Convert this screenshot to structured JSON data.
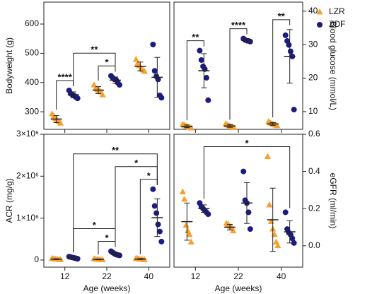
{
  "chart_data": [
    {
      "type": "dotplot",
      "ylabel": "Bodyweight (g)",
      "yaxis": "left",
      "ylim": [
        240,
        675
      ],
      "yticks": [
        300,
        400,
        500,
        600
      ],
      "legend": "right",
      "series": [
        {
          "name": "LZR",
          "color": "#f5a030",
          "marker": "triangle",
          "values": [
            [
              293,
              284,
              276,
              272,
              266,
              261
            ],
            [
              392,
              380,
              375,
              373,
              368,
              358
            ],
            [
              479,
              465,
              457,
              448,
              443,
              438
            ]
          ],
          "means": [
            275,
            374,
            455
          ],
          "sds": [
            12,
            12,
            15
          ]
        },
        {
          "name": "ZDF",
          "color": "#1c1c80",
          "marker": "circle",
          "values": [
            [
              373,
              362,
              358,
              355,
              350,
              346
            ],
            [
              423,
              416,
              411,
              409,
              399,
              392
            ],
            [
              530,
              440,
              421,
              411,
              356,
              348
            ]
          ],
          "means": [
            358,
            408,
            418
          ],
          "sds": [
            10,
            11,
            68
          ]
        }
      ],
      "annotations": [
        {
          "groups": [
            [
              0,
              0
            ],
            [
              0,
              1
            ]
          ],
          "label": "****"
        },
        {
          "groups": [
            [
              1,
              0
            ],
            [
              1,
              1
            ]
          ],
          "label": "*"
        },
        {
          "groups": [
            [
              0,
              1
            ],
            [
              1,
              1
            ]
          ],
          "label": "**"
        }
      ]
    },
    {
      "type": "dotplot",
      "ylabel": "Blood glucose (mmol/L)",
      "yaxis": "right",
      "ylim": [
        4.7,
        42.7
      ],
      "yticks": [
        10,
        20,
        30,
        40
      ],
      "series": [
        {
          "values": [
            [
              6.2,
              5.9,
              5.7,
              5.5,
              5.3,
              5.1
            ],
            [
              6.3,
              6.0,
              5.8,
              5.6,
              5.4,
              5.2
            ],
            [
              7.0,
              6.6,
              6.4,
              6.2,
              6.0,
              5.8
            ]
          ],
          "means": [
            5.6,
            5.7,
            6.3
          ],
          "sds": [
            0.4,
            0.4,
            0.4
          ]
        },
        {
          "values": [
            [
              28.2,
              25.4,
              23.5,
              22.7,
              20.1,
              13.4
            ],
            [
              31.8,
              31.4,
              31.2,
              31.1,
              30.9
            ],
            [
              32.8,
              31.1,
              29.9,
              28.0,
              26.5,
              10.6
            ]
          ],
          "means": [
            22.2,
            31.3,
            26.5
          ],
          "sds": [
            5.1,
            0.4,
            8.0
          ]
        }
      ],
      "annotations": [
        {
          "groups": [
            [
              0,
              0
            ],
            [
              0,
              1
            ]
          ],
          "label": "**"
        },
        {
          "groups": [
            [
              1,
              0
            ],
            [
              1,
              1
            ]
          ],
          "label": "****"
        },
        {
          "groups": [
            [
              2,
              0
            ],
            [
              2,
              1
            ]
          ],
          "label": "**"
        }
      ]
    },
    {
      "type": "dotplot",
      "ylabel": "ACR (mg/g)",
      "xlabel": "Age (weeks)",
      "yaxis": "left",
      "categories": [
        "12",
        "22",
        "40"
      ],
      "ylim": [
        -170000,
        3000000
      ],
      "yticks": [
        0,
        {
          "value": 1000000,
          "label": "1×10⁶"
        },
        {
          "value": 2000000,
          "label": "2×10⁶"
        },
        {
          "value": 3000000,
          "label": "3×10⁶"
        }
      ],
      "series": [
        {
          "values": [
            [
              40000,
              30000,
              20000,
              20000,
              10000,
              10000
            ],
            [
              30000,
              20000,
              15000,
              10000,
              10000,
              5000
            ],
            [
              40000,
              30000,
              20000,
              20000,
              10000,
              10000
            ]
          ],
          "means": [
            20000,
            15000,
            22000
          ],
          "sds": [
            10000,
            9000,
            11000
          ]
        },
        {
          "values": [
            [
              80000,
              70000,
              60000,
              50000,
              40000,
              30000
            ],
            [
              210000,
              180000,
              150000,
              130000,
              120000,
              110000
            ],
            [
              1690000,
              1290000,
              1120000,
              850000,
              680000,
              440000
            ]
          ],
          "means": [
            55000,
            150000,
            1010000
          ],
          "sds": [
            18000,
            38000,
            450000
          ]
        }
      ],
      "annotations": [
        {
          "groups": [
            [
              1,
              0
            ],
            [
              1,
              1
            ]
          ],
          "label": "*"
        },
        {
          "groups": [
            [
              0,
              1
            ],
            [
              1,
              1
            ]
          ],
          "label": "*"
        },
        {
          "groups": [
            [
              2,
              0
            ],
            [
              2,
              1
            ]
          ],
          "label": "*"
        },
        {
          "groups": [
            [
              1,
              1
            ],
            [
              2,
              1
            ]
          ],
          "label": "*"
        },
        {
          "groups": [
            [
              0,
              1
            ],
            [
              2,
              1
            ]
          ],
          "label": "**"
        }
      ]
    },
    {
      "type": "dotplot",
      "ylabel": "eGFR (ml/min)",
      "xlabel": "Age (weeks)",
      "yaxis": "right",
      "categories": [
        "12",
        "22",
        "40"
      ],
      "ylim": [
        -0.115,
        0.6
      ],
      "yticks": [
        {
          "value": 0,
          "label": "0.0"
        },
        0.2,
        0.4,
        0.6
      ],
      "series": [
        {
          "values": [
            [
              0.29,
              0.25,
              0.11,
              0.08,
              0.06,
              0.02
            ],
            [
              0.12,
              0.115,
              0.105,
              0.1,
              0.08
            ],
            [
              0.48,
              0.22,
              0.13,
              0.09,
              0.06,
              0.02,
              0.0
            ]
          ],
          "means": [
            0.13,
            0.1,
            0.14
          ],
          "sds": [
            0.1,
            0.015,
            0.17
          ]
        },
        {
          "values": [
            [
              0.23,
              0.21,
              0.2,
              0.19,
              0.18,
              0.17
            ],
            [
              0.4,
              0.245,
              0.23,
              0.18,
              0.09
            ],
            [
              0.18,
              0.09,
              0.07,
              0.06,
              0.04,
              0.015
            ]
          ],
          "means": [
            0.2,
            0.23,
            0.075
          ],
          "sds": [
            0.02,
            0.11,
            0.06
          ]
        }
      ],
      "annotations": [
        {
          "groups": [
            [
              0,
              1
            ],
            [
              2,
              1
            ]
          ],
          "label": "*"
        }
      ]
    }
  ]
}
